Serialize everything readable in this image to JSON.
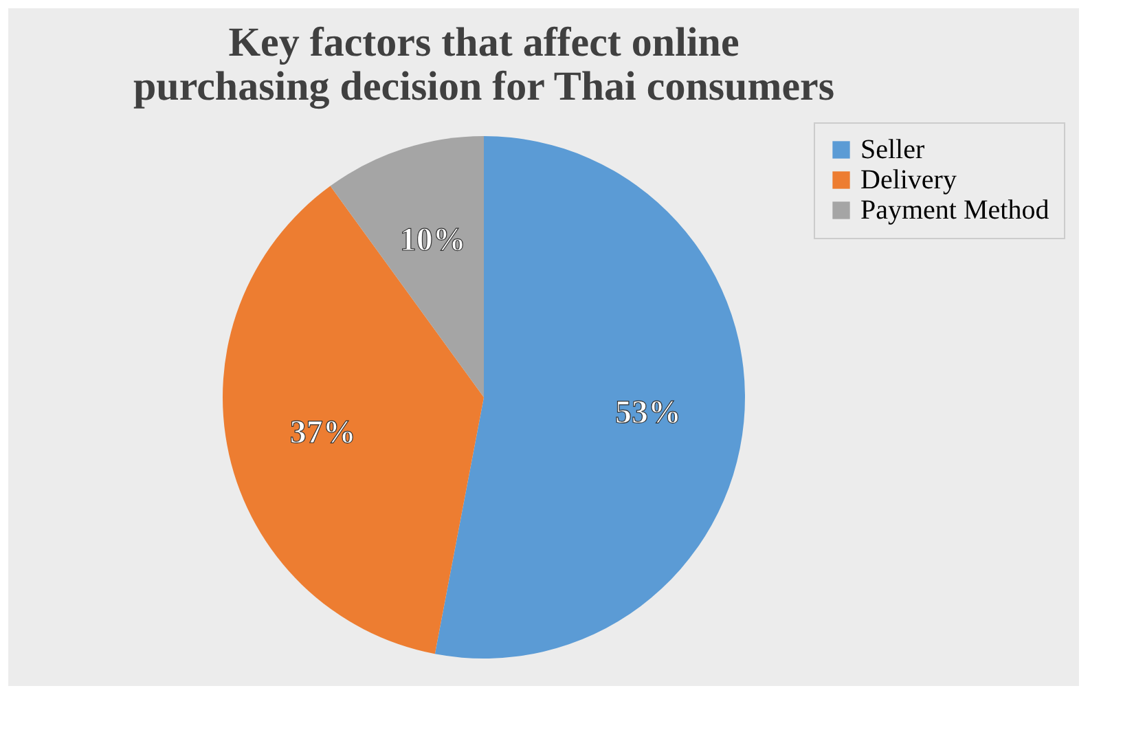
{
  "chart_data": {
    "type": "pie",
    "title": "Key factors that affect online purchasing decision for Thai consumers",
    "categories": [
      "Seller",
      "Delivery",
      "Payment Method"
    ],
    "values": [
      53,
      37,
      10
    ],
    "colors": [
      "#5b9bd5",
      "#ed7d31",
      "#a5a5a5"
    ],
    "value_labels": [
      "53%",
      "37%",
      "10%"
    ],
    "legend": "right"
  }
}
